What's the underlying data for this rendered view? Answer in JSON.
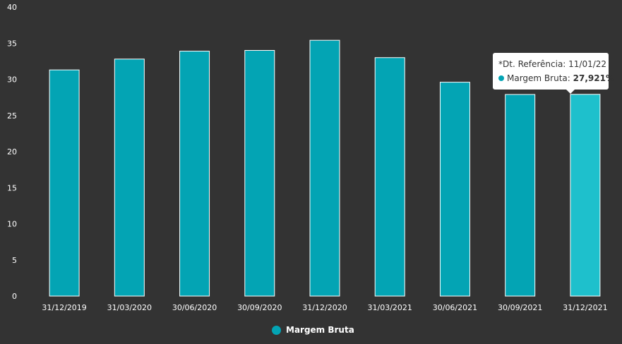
{
  "chart_data": {
    "type": "bar",
    "categories": [
      "31/12/2019",
      "31/03/2020",
      "30/06/2020",
      "30/09/2020",
      "31/12/2020",
      "31/03/2021",
      "30/06/2021",
      "30/09/2021",
      "31/12/2021"
    ],
    "series": [
      {
        "name": "Margem Bruta",
        "values": [
          31.3,
          32.8,
          33.9,
          34.0,
          35.4,
          33.0,
          29.6,
          27.9,
          27.921
        ]
      }
    ],
    "ylim": [
      0,
      40
    ],
    "yticks": [
      "0",
      "5",
      "10",
      "15",
      "20",
      "25",
      "30",
      "35",
      "40"
    ],
    "grid": false,
    "legend_position": "bottom-center",
    "colors": {
      "bar": "#03a4b4",
      "bar_hover": "#1ec0cc",
      "bar_edge": "#ffffff",
      "background": "#333333",
      "text": "#ffffff"
    },
    "highlighted_index": 8
  },
  "tooltip": {
    "reference_label": "*Dt. Referência: 11/01/22",
    "series_label": "Margem Bruta:",
    "value_label": "27,921%"
  },
  "legend": {
    "label": "Margem Bruta"
  }
}
